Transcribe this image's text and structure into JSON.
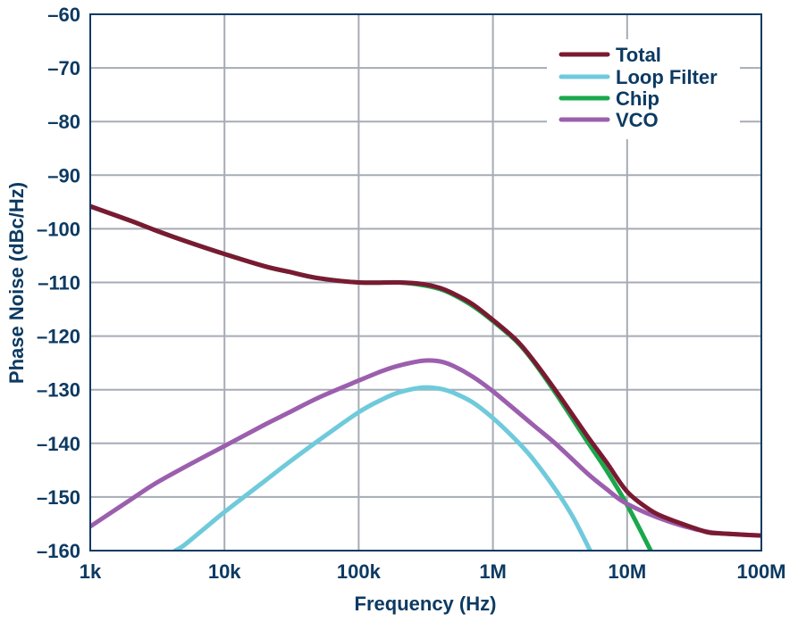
{
  "chart_data": {
    "type": "line",
    "title": "",
    "xlabel": "Frequency (Hz)",
    "ylabel": "Phase Noise (dBc/Hz)",
    "xscale": "log",
    "xlim": [
      1000,
      100000000
    ],
    "ylim": [
      -160,
      -60
    ],
    "grid": true,
    "legend_position": "top-right",
    "x_ticks": [
      {
        "value": 1000,
        "label": "1k"
      },
      {
        "value": 10000,
        "label": "10k"
      },
      {
        "value": 100000,
        "label": "100k"
      },
      {
        "value": 1000000,
        "label": "1M"
      },
      {
        "value": 10000000,
        "label": "10M"
      },
      {
        "value": 100000000,
        "label": "100M"
      }
    ],
    "y_ticks": [
      {
        "value": -60,
        "label": "–60"
      },
      {
        "value": -70,
        "label": "–70"
      },
      {
        "value": -80,
        "label": "–80"
      },
      {
        "value": -90,
        "label": "–90"
      },
      {
        "value": -100,
        "label": "–100"
      },
      {
        "value": -110,
        "label": "–110"
      },
      {
        "value": -120,
        "label": "–120"
      },
      {
        "value": -130,
        "label": "–130"
      },
      {
        "value": -140,
        "label": "–140"
      },
      {
        "value": -150,
        "label": "–150"
      },
      {
        "value": -160,
        "label": "–160"
      }
    ],
    "series": [
      {
        "name": "Chip",
        "color": "#1aa84a",
        "x": [
          1000,
          2000,
          3000,
          5000,
          10000,
          20000,
          30000,
          50000,
          100000,
          200000,
          300000,
          400000,
          500000,
          700000,
          1000000,
          1500000,
          2000000,
          3000000,
          5000000,
          7000000,
          10000000,
          15000000
        ],
        "y": [
          -95.8,
          -98.5,
          -100.2,
          -102.2,
          -104.7,
          -107.0,
          -108.0,
          -109.2,
          -110.0,
          -110.0,
          -110.5,
          -111.2,
          -112.2,
          -114.3,
          -117.2,
          -121.0,
          -124.7,
          -131.0,
          -139.5,
          -145.0,
          -151.5,
          -160.0
        ]
      },
      {
        "name": "Loop Filter",
        "color": "#6fcadb",
        "x": [
          4300,
          5000,
          7000,
          10000,
          20000,
          30000,
          50000,
          100000,
          150000,
          200000,
          300000,
          400000,
          500000,
          700000,
          1000000,
          1500000,
          2000000,
          3000000,
          4000000,
          5300000
        ],
        "y": [
          -160.0,
          -159.0,
          -156.0,
          -152.8,
          -147.0,
          -143.6,
          -139.5,
          -134.2,
          -131.8,
          -130.5,
          -129.6,
          -129.8,
          -130.5,
          -132.3,
          -135.3,
          -139.5,
          -143.0,
          -149.0,
          -154.0,
          -160.0
        ]
      },
      {
        "name": "VCO",
        "color": "#9b5fae",
        "x": [
          1000,
          2000,
          3000,
          5000,
          10000,
          20000,
          30000,
          50000,
          100000,
          150000,
          200000,
          300000,
          400000,
          500000,
          700000,
          1000000,
          2000000,
          3000000,
          5000000,
          7000000,
          10000000,
          20000000,
          40000000,
          70000000,
          100000000
        ],
        "y": [
          -155.5,
          -150.5,
          -147.6,
          -144.5,
          -140.5,
          -136.5,
          -134.3,
          -131.5,
          -128.3,
          -126.5,
          -125.5,
          -124.6,
          -124.7,
          -125.5,
          -127.5,
          -130.3,
          -136.6,
          -140.3,
          -145.5,
          -148.5,
          -151.3,
          -154.5,
          -156.5,
          -157.0,
          -157.2
        ]
      },
      {
        "name": "Total",
        "color": "#7a1a32",
        "x": [
          1000,
          2000,
          3000,
          5000,
          10000,
          20000,
          30000,
          50000,
          100000,
          200000,
          300000,
          400000,
          500000,
          700000,
          1000000,
          1500000,
          2000000,
          3000000,
          5000000,
          7000000,
          10000000,
          15000000,
          20000000,
          30000000,
          40000000,
          50000000,
          70000000,
          100000000
        ],
        "y": [
          -95.8,
          -98.5,
          -100.2,
          -102.2,
          -104.7,
          -107.0,
          -108.0,
          -109.2,
          -110.0,
          -110.0,
          -110.3,
          -111.0,
          -112.0,
          -114.0,
          -117.0,
          -120.8,
          -124.5,
          -130.5,
          -138.5,
          -143.5,
          -149.0,
          -152.5,
          -154.0,
          -155.6,
          -156.6,
          -156.8,
          -157.0,
          -157.2
        ]
      }
    ],
    "legend": [
      {
        "label": "Total",
        "color": "#7a1a32"
      },
      {
        "label": "Loop Filter",
        "color": "#6fcadb"
      },
      {
        "label": "Chip",
        "color": "#1aa84a"
      },
      {
        "label": "VCO",
        "color": "#9b5fae"
      }
    ]
  }
}
